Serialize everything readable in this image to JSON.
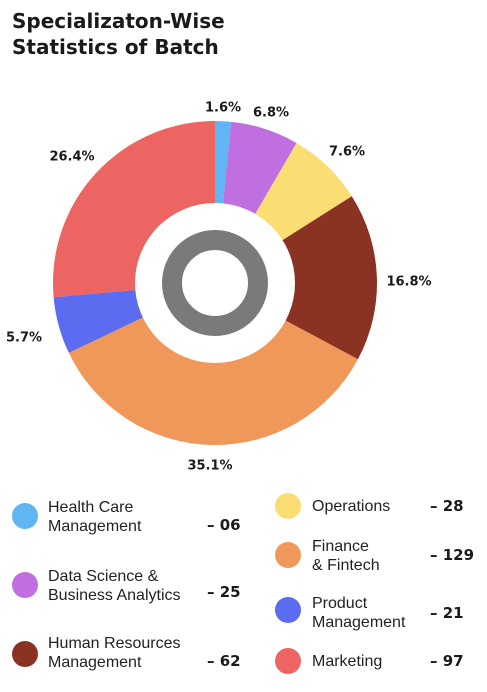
{
  "title_lines": [
    "Specializaton-Wise",
    "Statistics of Batch"
  ],
  "chart_data": {
    "type": "pie",
    "variant": "donut",
    "title": "Specializaton-Wise Statistics of Batch",
    "slices": [
      {
        "label": "Health Care Management",
        "label_lines": [
          "Health Care",
          "Management"
        ],
        "percent": 1.6,
        "percent_label": "1.6%",
        "count_label": "– 06",
        "color": "#5fb6f2"
      },
      {
        "label": "Data Science & Business Analytics",
        "label_lines": [
          "Data Science &",
          "Business Analytics"
        ],
        "percent": 6.8,
        "percent_label": "6.8%",
        "count_label": "– 25",
        "color": "#bf6fe0"
      },
      {
        "label": "Operations",
        "label_lines": [
          "Operations"
        ],
        "percent": 7.6,
        "percent_label": "7.6%",
        "count_label": "– 28",
        "color": "#fade74"
      },
      {
        "label": "Human Resources Management",
        "label_lines": [
          "Human Resources",
          "Management"
        ],
        "percent": 16.8,
        "percent_label": "16.8%",
        "count_label": "– 62",
        "color": "#8b3322"
      },
      {
        "label": "Finance & Fintech",
        "label_lines": [
          "Finance",
          "& Fintech"
        ],
        "percent": 35.1,
        "percent_label": "35.1%",
        "count_label": "– 129",
        "color": "#f0985a"
      },
      {
        "label": "Product Management",
        "label_lines": [
          "Product",
          "Management"
        ],
        "percent": 5.7,
        "percent_label": "5.7%",
        "count_label": "– 21",
        "color": "#5b6cf0"
      },
      {
        "label": "Marketing",
        "label_lines": [
          "Marketing"
        ],
        "percent": 26.4,
        "percent_label": "26.4%",
        "count_label": "– 97",
        "color": "#ec6562"
      }
    ],
    "legend_order": [
      0,
      1,
      3,
      2,
      4,
      5,
      6
    ],
    "center_ring_color": "#7a7a7a"
  }
}
